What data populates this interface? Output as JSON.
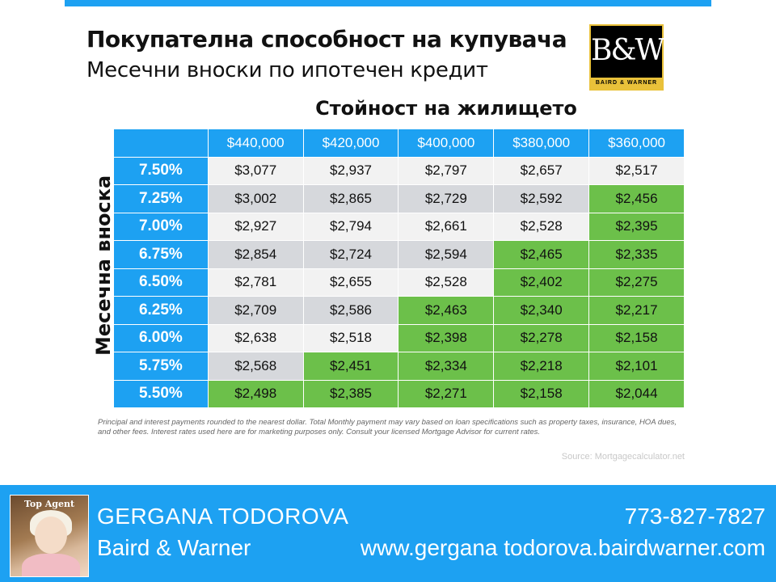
{
  "header": {
    "title": "Покупателна способност на купувача",
    "subtitle": "Месечни вноски по ипотечен кредит"
  },
  "logo": {
    "mark": "B&W",
    "text": "BAIRD & WARNER"
  },
  "table": {
    "column_title": "Стойност на жилището",
    "row_title": "Месечна вноска",
    "columns": [
      "$440,000",
      "$420,000",
      "$400,000",
      "$380,000",
      "$360,000"
    ],
    "rows": [
      {
        "rate": "7.50%",
        "values": [
          "$3,077",
          "$2,937",
          "$2,797",
          "$2,657",
          "$2,517"
        ],
        "green_from": 5
      },
      {
        "rate": "7.25%",
        "values": [
          "$3,002",
          "$2,865",
          "$2,729",
          "$2,592",
          "$2,456"
        ],
        "green_from": 4
      },
      {
        "rate": "7.00%",
        "values": [
          "$2,927",
          "$2,794",
          "$2,661",
          "$2,528",
          "$2,395"
        ],
        "green_from": 4
      },
      {
        "rate": "6.75%",
        "values": [
          "$2,854",
          "$2,724",
          "$2,594",
          "$2,465",
          "$2,335"
        ],
        "green_from": 3
      },
      {
        "rate": "6.50%",
        "values": [
          "$2,781",
          "$2,655",
          "$2,528",
          "$2,402",
          "$2,275"
        ],
        "green_from": 3
      },
      {
        "rate": "6.25%",
        "values": [
          "$2,709",
          "$2,586",
          "$2,463",
          "$2,340",
          "$2,217"
        ],
        "green_from": 2
      },
      {
        "rate": "6.00%",
        "values": [
          "$2,638",
          "$2,518",
          "$2,398",
          "$2,278",
          "$2,158"
        ],
        "green_from": 2
      },
      {
        "rate": "5.75%",
        "values": [
          "$2,568",
          "$2,451",
          "$2,334",
          "$2,218",
          "$2,101"
        ],
        "green_from": 1
      },
      {
        "rate": "5.50%",
        "values": [
          "$2,498",
          "$2,385",
          "$2,271",
          "$2,158",
          "$2,044"
        ],
        "green_from": 0
      }
    ]
  },
  "disclaimer": "Principal and interest payments rounded to the nearest dollar. Total Monthly payment may vary based on loan specifications such as property taxes, insurance, HOA dues, and other fees. Interest rates used here are for marketing purposes only. Consult your licensed Mortgage Advisor for current rates.",
  "source": "Source: Mortgagecalculator.net",
  "footer": {
    "photo_badge": "Top Agent",
    "name": "GERGANA TODOROVA",
    "company": "Baird & Warner",
    "phone": "773-827-7827",
    "website": "www.gergana todorova.bairdwarner.com"
  },
  "colors": {
    "header_blue": "#1da1f2",
    "highlight_green": "#6cc04a",
    "row_light": "#f2f2f2",
    "row_gray": "#d6d8dc"
  }
}
